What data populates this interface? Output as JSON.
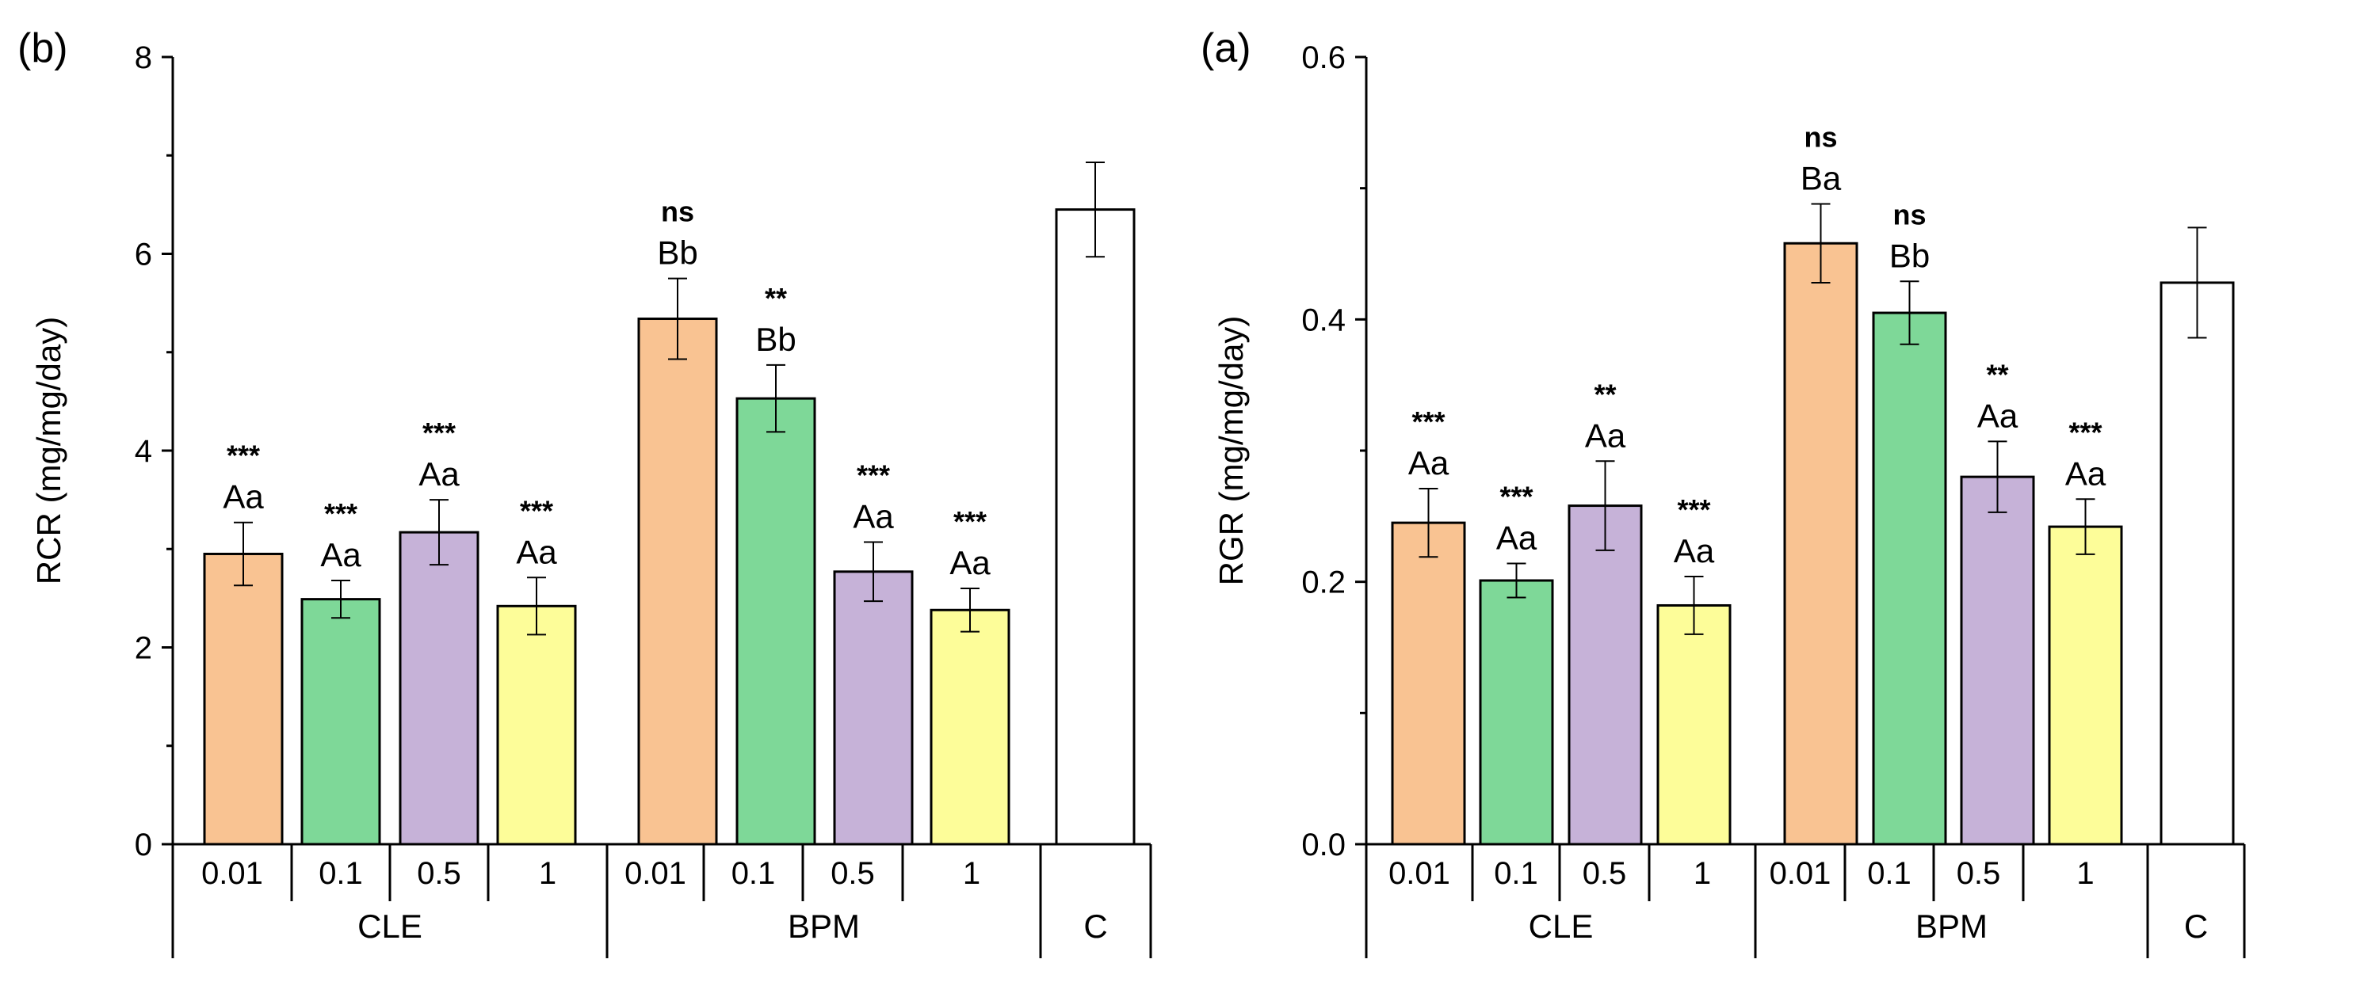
{
  "chart_data": [
    {
      "type": "bar",
      "panel_label": "(b)",
      "ylabel": "RCR (mg/mg/day)",
      "ylim": [
        0,
        8
      ],
      "yticks": [
        0,
        2,
        4,
        6,
        8
      ],
      "ytick_labels": [
        "0",
        "2",
        "4",
        "6",
        "8"
      ],
      "groups": [
        "CLE",
        "BPM",
        "C"
      ],
      "bars": [
        {
          "group": "CLE",
          "label": "0.01",
          "value": 2.95,
          "error": 0.32,
          "color": "#f9c392",
          "letters": "Aa",
          "sig": "***"
        },
        {
          "group": "CLE",
          "label": "0.1",
          "value": 2.49,
          "error": 0.19,
          "color": "#7ed898",
          "letters": "Aa",
          "sig": "***"
        },
        {
          "group": "CLE",
          "label": "0.5",
          "value": 3.17,
          "error": 0.33,
          "color": "#c6b2d8",
          "letters": "Aa",
          "sig": "***"
        },
        {
          "group": "CLE",
          "label": "1",
          "value": 2.42,
          "error": 0.29,
          "color": "#fdfd99",
          "letters": "Aa",
          "sig": "***"
        },
        {
          "group": "BPM",
          "label": "0.01",
          "value": 5.34,
          "error": 0.41,
          "color": "#f9c392",
          "letters": "Bb",
          "sig": "ns"
        },
        {
          "group": "BPM",
          "label": "0.1",
          "value": 4.53,
          "error": 0.34,
          "color": "#7ed898",
          "letters": "Bb",
          "sig": "**"
        },
        {
          "group": "BPM",
          "label": "0.5",
          "value": 2.77,
          "error": 0.3,
          "color": "#c6b2d8",
          "letters": "Aa",
          "sig": "***"
        },
        {
          "group": "BPM",
          "label": "1",
          "value": 2.38,
          "error": 0.22,
          "color": "#fdfd99",
          "letters": "Aa",
          "sig": "***"
        },
        {
          "group": "C",
          "label": "",
          "value": 6.45,
          "error": 0.48,
          "color": "#ffffff",
          "letters": "",
          "sig": ""
        }
      ]
    },
    {
      "type": "bar",
      "panel_label": "(a)",
      "ylabel": "RGR (mg/mg/day)",
      "ylim": [
        0,
        0.6
      ],
      "yticks": [
        0,
        0.2,
        0.4,
        0.6
      ],
      "ytick_labels": [
        "0.0",
        "0.2",
        "0.4",
        "0.6"
      ],
      "groups": [
        "CLE",
        "BPM",
        "C"
      ],
      "bars": [
        {
          "group": "CLE",
          "label": "0.01",
          "value": 0.245,
          "error": 0.026,
          "color": "#f9c392",
          "letters": "Aa",
          "sig": "***"
        },
        {
          "group": "CLE",
          "label": "0.1",
          "value": 0.201,
          "error": 0.013,
          "color": "#7ed898",
          "letters": "Aa",
          "sig": "***"
        },
        {
          "group": "CLE",
          "label": "0.5",
          "value": 0.258,
          "error": 0.034,
          "color": "#c6b2d8",
          "letters": "Aa",
          "sig": "**"
        },
        {
          "group": "CLE",
          "label": "1",
          "value": 0.182,
          "error": 0.022,
          "color": "#fdfd99",
          "letters": "Aa",
          "sig": "***"
        },
        {
          "group": "BPM",
          "label": "0.01",
          "value": 0.458,
          "error": 0.03,
          "color": "#f9c392",
          "letters": "Ba",
          "sig": "ns"
        },
        {
          "group": "BPM",
          "label": "0.1",
          "value": 0.405,
          "error": 0.024,
          "color": "#7ed898",
          "letters": "Bb",
          "sig": "ns"
        },
        {
          "group": "BPM",
          "label": "0.5",
          "value": 0.28,
          "error": 0.027,
          "color": "#c6b2d8",
          "letters": "Aa",
          "sig": "**"
        },
        {
          "group": "BPM",
          "label": "1",
          "value": 0.242,
          "error": 0.021,
          "color": "#fdfd99",
          "letters": "Aa",
          "sig": "***"
        },
        {
          "group": "C",
          "label": "",
          "value": 0.428,
          "error": 0.042,
          "color": "#ffffff",
          "letters": "",
          "sig": ""
        }
      ]
    }
  ]
}
